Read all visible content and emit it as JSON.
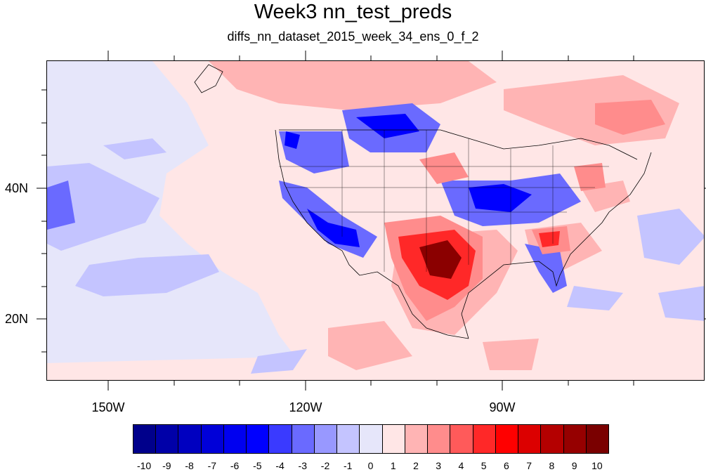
{
  "title": "Week3 nn_test_preds",
  "subtitle": "diffs_nn_dataset_2015_week_34_ens_0_f_2",
  "lat_labels": [
    "40N",
    "20N"
  ],
  "lon_labels": [
    "150W",
    "120W",
    "90W"
  ],
  "colorbar": {
    "labels": [
      "-10",
      "-9",
      "-8",
      "-7",
      "-6",
      "-5",
      "-4",
      "-3",
      "-2",
      "-1",
      "0",
      "1",
      "2",
      "3",
      "4",
      "5",
      "6",
      "7",
      "8",
      "9",
      "10"
    ],
    "colors": [
      "#00008b",
      "#0000a8",
      "#0000c0",
      "#0000d8",
      "#0000f0",
      "#0000ff",
      "#3a3aff",
      "#6a6aff",
      "#9898ff",
      "#c4c4ff",
      "#e6e6fa",
      "#ffe6e6",
      "#ffb4b4",
      "#ff8c8c",
      "#ff5a5a",
      "#ff2828",
      "#ff0000",
      "#dc0000",
      "#b40000",
      "#960000",
      "#7a0000"
    ]
  },
  "map_colors": {
    "background": "#e6e6fa",
    "light_pink": "#ffe6e6",
    "pink": "#ffb4b4",
    "salmon": "#ff8c8c",
    "red": "#ff2828",
    "dark_red": "#8b0000",
    "light_blue": "#c4c4ff",
    "blue": "#6a6aff",
    "dark_blue": "#0000ff"
  }
}
